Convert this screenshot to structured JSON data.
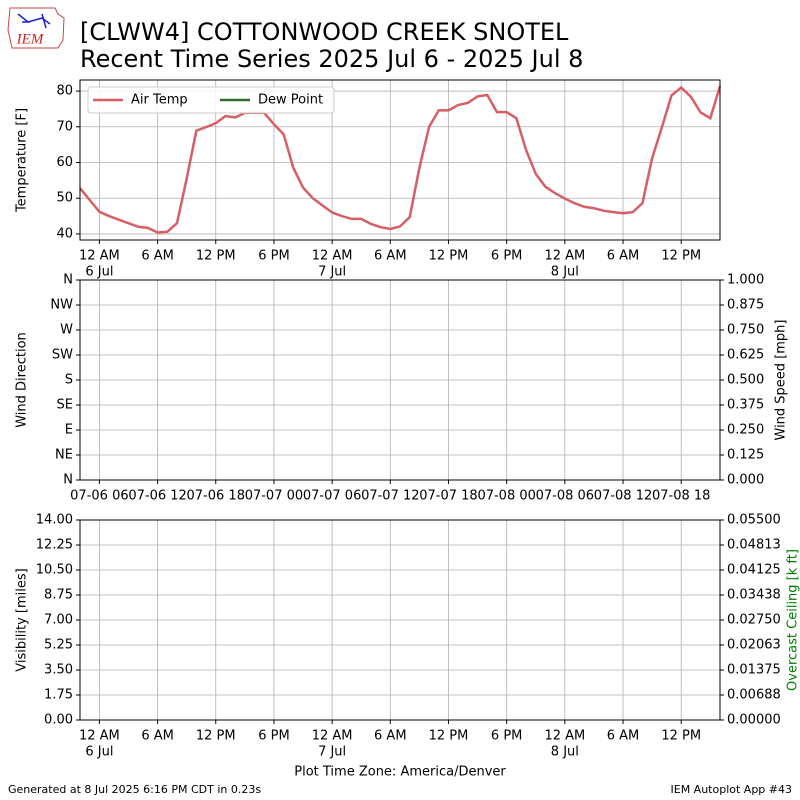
{
  "logo": "IEM",
  "header": {
    "title_line1": "[CLWW4] COTTONWOOD CREEK SNOTEL",
    "title_line2": "Recent Time Series 2025 Jul 6 - 2025 Jul 8"
  },
  "footer": {
    "left": "Generated at 8 Jul 2025 6:16 PM CDT in 0.23s",
    "right": "IEM Autoplot App #43"
  },
  "chart_data": [
    {
      "type": "line",
      "ylabel": "Temperature [F]",
      "grid": true,
      "legend": "upper left",
      "xlim": [
        "2025-07-05 22:00",
        "2025-07-08 16:00"
      ],
      "ylim": [
        38.3,
        83.1
      ],
      "yticks": [
        40,
        50,
        60,
        70,
        80
      ],
      "xticks": [
        {
          "value": "2025-07-06 00:00",
          "label": "12 AM",
          "sublabel": "6 Jul"
        },
        {
          "value": "2025-07-06 06:00",
          "label": "6 AM"
        },
        {
          "value": "2025-07-06 12:00",
          "label": "12 PM"
        },
        {
          "value": "2025-07-06 18:00",
          "label": "6 PM"
        },
        {
          "value": "2025-07-07 00:00",
          "label": "12 AM",
          "sublabel": "7 Jul"
        },
        {
          "value": "2025-07-07 06:00",
          "label": "6 AM"
        },
        {
          "value": "2025-07-07 12:00",
          "label": "12 PM"
        },
        {
          "value": "2025-07-07 18:00",
          "label": "6 PM"
        },
        {
          "value": "2025-07-08 00:00",
          "label": "12 AM",
          "sublabel": "8 Jul"
        },
        {
          "value": "2025-07-08 06:00",
          "label": "6 AM"
        },
        {
          "value": "2025-07-08 12:00",
          "label": "12 PM"
        }
      ],
      "x": [
        "2025-07-05 22:00",
        "2025-07-05 23:00",
        "2025-07-06 00:00",
        "2025-07-06 01:00",
        "2025-07-06 02:00",
        "2025-07-06 03:00",
        "2025-07-06 04:00",
        "2025-07-06 05:00",
        "2025-07-06 06:00",
        "2025-07-06 07:00",
        "2025-07-06 08:00",
        "2025-07-06 09:00",
        "2025-07-06 10:00",
        "2025-07-06 11:00",
        "2025-07-06 12:00",
        "2025-07-06 13:00",
        "2025-07-06 14:00",
        "2025-07-06 15:00",
        "2025-07-06 16:00",
        "2025-07-06 17:00",
        "2025-07-06 18:00",
        "2025-07-06 19:00",
        "2025-07-06 20:00",
        "2025-07-06 21:00",
        "2025-07-06 22:00",
        "2025-07-06 23:00",
        "2025-07-07 00:00",
        "2025-07-07 01:00",
        "2025-07-07 02:00",
        "2025-07-07 03:00",
        "2025-07-07 04:00",
        "2025-07-07 05:00",
        "2025-07-07 06:00",
        "2025-07-07 07:00",
        "2025-07-07 08:00",
        "2025-07-07 09:00",
        "2025-07-07 10:00",
        "2025-07-07 11:00",
        "2025-07-07 12:00",
        "2025-07-07 13:00",
        "2025-07-07 14:00",
        "2025-07-07 15:00",
        "2025-07-07 16:00",
        "2025-07-07 17:00",
        "2025-07-07 18:00",
        "2025-07-07 19:00",
        "2025-07-07 20:00",
        "2025-07-07 21:00",
        "2025-07-07 22:00",
        "2025-07-07 23:00",
        "2025-07-08 00:00",
        "2025-07-08 01:00",
        "2025-07-08 02:00",
        "2025-07-08 03:00",
        "2025-07-08 04:00",
        "2025-07-08 05:00",
        "2025-07-08 06:00",
        "2025-07-08 07:00",
        "2025-07-08 08:00",
        "2025-07-08 09:00",
        "2025-07-08 10:00",
        "2025-07-08 11:00",
        "2025-07-08 12:00",
        "2025-07-08 13:00",
        "2025-07-08 14:00",
        "2025-07-08 15:00",
        "2025-07-08 16:00"
      ],
      "series": [
        {
          "name": "Air Temp",
          "color": "#d65f66",
          "values": [
            52.8,
            49.5,
            46.2,
            45,
            44,
            43,
            42,
            41.7,
            40.4,
            40.6,
            43,
            55.5,
            68.9,
            69.9,
            71,
            73,
            72.6,
            73.9,
            73.9,
            73.9,
            70.7,
            67.9,
            58.5,
            53,
            50,
            48,
            46,
            45,
            44.2,
            44.2,
            42.8,
            41.9,
            41.4,
            42.1,
            44.7,
            58.5,
            70,
            74.6,
            74.6,
            76.1,
            76.7,
            78.5,
            78.9,
            74.1,
            74.1,
            72.4,
            63.5,
            56.8,
            53.2,
            51.4,
            49.9,
            48.6,
            47.6,
            47.2,
            46.5,
            46.1,
            45.8,
            46.1,
            48.6,
            61.2,
            69.8,
            78.8,
            81,
            78.4,
            74,
            72.4,
            81.4
          ]
        },
        {
          "name": "Dew Point",
          "color": "#2e6b30",
          "values": [
            null,
            null,
            null,
            null,
            null,
            null,
            null,
            null,
            null,
            null,
            null,
            null,
            null,
            null,
            null,
            null,
            null,
            null,
            null,
            null,
            null,
            null,
            null,
            null,
            null,
            null,
            null,
            null,
            null,
            null,
            null,
            null,
            null,
            null,
            null,
            null,
            null,
            null,
            null,
            null,
            null,
            null,
            null,
            null,
            null,
            null,
            null,
            null,
            null,
            null,
            null,
            null,
            null,
            null,
            null,
            null,
            null,
            null,
            null,
            null,
            null,
            null,
            null,
            null,
            null,
            null,
            null
          ]
        }
      ]
    },
    {
      "type": "line",
      "ylabel": "Wind Direction",
      "y2label": "Wind Speed [mph]",
      "grid": true,
      "xlim": [
        "2025-07-05 22:00",
        "2025-07-08 16:00"
      ],
      "ylim": [
        0,
        360
      ],
      "yticks": [
        {
          "value": 0,
          "label": "N"
        },
        {
          "value": 45,
          "label": "NE"
        },
        {
          "value": 90,
          "label": "E"
        },
        {
          "value": 135,
          "label": "SE"
        },
        {
          "value": 180,
          "label": "S"
        },
        {
          "value": 225,
          "label": "SW"
        },
        {
          "value": 270,
          "label": "W"
        },
        {
          "value": 315,
          "label": "NW"
        },
        {
          "value": 360,
          "label": "N"
        }
      ],
      "y2lim": [
        0,
        1
      ],
      "y2ticks": [
        {
          "value": 0,
          "label": "0.000"
        },
        {
          "value": 0.125,
          "label": "0.125"
        },
        {
          "value": 0.25,
          "label": "0.250"
        },
        {
          "value": 0.375,
          "label": "0.375"
        },
        {
          "value": 0.5,
          "label": "0.500"
        },
        {
          "value": 0.625,
          "label": "0.625"
        },
        {
          "value": 0.75,
          "label": "0.750"
        },
        {
          "value": 0.875,
          "label": "0.875"
        },
        {
          "value": 1,
          "label": "1.000"
        }
      ],
      "xticks": [
        {
          "value": "2025-07-06 00:00",
          "label": "07-06 06"
        },
        {
          "value": "2025-07-06 06:00",
          "label": "07-06 12"
        },
        {
          "value": "2025-07-06 12:00",
          "label": "07-06 18"
        },
        {
          "value": "2025-07-06 18:00",
          "label": "07-07 00"
        },
        {
          "value": "2025-07-07 00:00",
          "label": "07-07 06"
        },
        {
          "value": "2025-07-07 06:00",
          "label": "07-07 12"
        },
        {
          "value": "2025-07-07 12:00",
          "label": "07-07 18"
        },
        {
          "value": "2025-07-07 18:00",
          "label": "07-08 00"
        },
        {
          "value": "2025-07-08 00:00",
          "label": "07-08 06"
        },
        {
          "value": "2025-07-08 06:00",
          "label": "07-08 12"
        },
        {
          "value": "2025-07-08 12:00",
          "label": "07-08 18"
        }
      ]
    },
    {
      "type": "line",
      "ylabel": "Visibility [miles]",
      "y2label": "Overcast Ceiling [k ft]",
      "y2label_color": "#008000",
      "xlabel": "Plot Time Zone: America/Denver",
      "grid": true,
      "xlim": [
        "2025-07-05 22:00",
        "2025-07-08 16:00"
      ],
      "ylim": [
        0,
        14
      ],
      "yticks": [
        {
          "value": 0,
          "label": "0.00"
        },
        1.75,
        {
          "value": 3.5,
          "label": "3.50"
        },
        5.25,
        {
          "value": 7,
          "label": "7.00"
        },
        8.75,
        {
          "value": 10.5,
          "label": "10.50"
        },
        12.25,
        {
          "value": 14,
          "label": "14.00"
        }
      ],
      "y2lim": [
        0,
        0.055
      ],
      "y2ticks": [
        {
          "value": 0,
          "label": "0.00000"
        },
        {
          "value": 0.006875,
          "label": "0.00688"
        },
        0.01375,
        {
          "value": 0.020625,
          "label": "0.02063"
        },
        {
          "value": 0.0275,
          "label": "0.02750"
        },
        {
          "value": 0.034375,
          "label": "0.03438"
        },
        0.04125,
        {
          "value": 0.048125,
          "label": "0.04813"
        },
        {
          "value": 0.055,
          "label": "0.05500"
        }
      ],
      "xticks": [
        {
          "value": "2025-07-06 00:00",
          "label": "12 AM",
          "sublabel": "6 Jul"
        },
        {
          "value": "2025-07-06 06:00",
          "label": "6 AM"
        },
        {
          "value": "2025-07-06 12:00",
          "label": "12 PM"
        },
        {
          "value": "2025-07-06 18:00",
          "label": "6 PM"
        },
        {
          "value": "2025-07-07 00:00",
          "label": "12 AM",
          "sublabel": "7 Jul"
        },
        {
          "value": "2025-07-07 06:00",
          "label": "6 AM"
        },
        {
          "value": "2025-07-07 12:00",
          "label": "12 PM"
        },
        {
          "value": "2025-07-07 18:00",
          "label": "6 PM"
        },
        {
          "value": "2025-07-08 00:00",
          "label": "12 AM",
          "sublabel": "8 Jul"
        },
        {
          "value": "2025-07-08 06:00",
          "label": "6 AM"
        },
        {
          "value": "2025-07-08 12:00",
          "label": "12 PM"
        }
      ]
    }
  ]
}
